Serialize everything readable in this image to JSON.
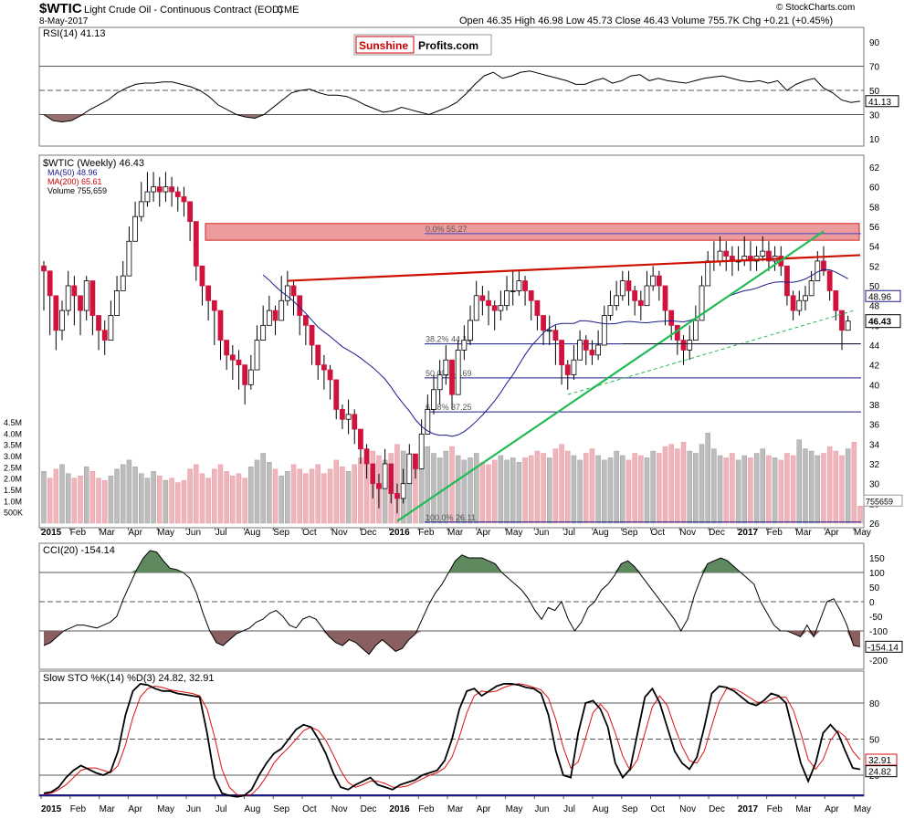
{
  "header": {
    "symbol": "$WTIC",
    "description": "Light Crude Oil - Continuous Contract (EOD)",
    "exchange": "CME",
    "date": "8-May-2017",
    "quote": "Open 46.35  High 46.98  Low 45.73  Close 46.43  Volume 755.7K  Chg +0.21 (+0.45%)",
    "copyright": "© StockCharts.com"
  },
  "logo": {
    "part1": "Sunshine",
    "part2": "Profits.com"
  },
  "colors": {
    "up": "#ffffff",
    "down": "#d0133d",
    "ma50": "#1a1a8c",
    "ma200": "#cc0000",
    "cci_pos": "#5f8a5f",
    "cci_neg": "#8a5f5f",
    "green_line": "#22bb55",
    "resistance": "#cc1100",
    "zone": "#e88a8a",
    "stoch_k": "#000000",
    "stoch_d": "#dd1111"
  },
  "rsi": {
    "label": "RSI(14) 41.13",
    "last_label": "41.13",
    "ticks": [
      "90",
      "70",
      "50",
      "30",
      "10"
    ],
    "values": [
      30,
      25,
      24,
      25,
      29,
      34,
      38,
      42,
      48,
      52,
      55,
      56,
      56,
      57,
      57,
      55,
      53,
      50,
      45,
      38,
      34,
      30,
      28,
      27,
      30,
      36,
      42,
      48,
      50,
      51,
      48,
      46,
      46,
      45,
      42,
      38,
      35,
      32,
      33,
      36,
      34,
      32,
      30,
      33,
      36,
      40,
      47,
      55,
      62,
      65,
      60,
      62,
      65,
      66,
      64,
      62,
      60,
      58,
      55,
      55,
      58,
      60,
      56,
      58,
      62,
      63,
      58,
      60,
      58,
      57,
      56,
      58,
      60,
      61,
      62,
      60,
      58,
      57,
      58,
      56,
      58,
      50,
      55,
      58,
      60,
      52,
      48,
      42,
      40,
      41
    ]
  },
  "price": {
    "label": "$WTIC (Weekly) 46.43",
    "legend": [
      "MA(50) 48.96",
      "MA(200) 65.61",
      "Volume 755,659"
    ],
    "ticks": [
      "62",
      "60",
      "58",
      "56",
      "54",
      "52",
      "50",
      "48",
      "46",
      "44",
      "42",
      "40",
      "38",
      "36",
      "34",
      "32",
      "30",
      "28",
      "26"
    ],
    "vol_ticks": [
      "4.5M",
      "4.0M",
      "3.5M",
      "3.0M",
      "2.5M",
      "2.0M",
      "1.5M",
      "1.0M",
      "500K"
    ],
    "last_label": "46.43",
    "ma50_label": "48.96",
    "vol_label": "755659",
    "fib": [
      {
        "label": "0.0% 55.27",
        "value": 55.27
      },
      {
        "label": "38.2% 44.13",
        "value": 44.13
      },
      {
        "label": "50.0% 40.69",
        "value": 40.69
      },
      {
        "label": "61.8% 37.25",
        "value": 37.25
      },
      {
        "label": "100.0% 26.11",
        "value": 26.11
      }
    ],
    "closes": [
      51.5,
      49.0,
      45.5,
      47.5,
      50.0,
      49.0,
      47.5,
      50.5,
      47.0,
      45.5,
      44.5,
      47.0,
      49.5,
      51.0,
      54.5,
      57.0,
      58.5,
      59.5,
      60.0,
      59.5,
      60.0,
      59.5,
      59.0,
      58.5,
      56.5,
      52.0,
      50.0,
      48.5,
      47.5,
      44.5,
      43.0,
      42.5,
      42.0,
      40.0,
      41.5,
      44.5,
      46.0,
      47.5,
      46.5,
      48.5,
      50.0,
      49.0,
      47.0,
      46.0,
      44.0,
      42.0,
      41.5,
      40.5,
      37.5,
      36.5,
      37.0,
      35.5,
      33.5,
      32.0,
      30.0,
      29.5,
      32.0,
      29.0,
      28.5,
      30.0,
      33.0,
      31.5,
      35.0,
      37.5,
      39.5,
      41.0,
      42.5,
      39.0,
      43.5,
      44.5,
      46.5,
      49.0,
      48.5,
      48.0,
      47.5,
      48.0,
      49.5,
      49.5,
      50.5,
      49.5,
      48.5,
      47.0,
      45.5,
      45.5,
      44.5,
      42.0,
      41.0,
      42.5,
      44.5,
      43.5,
      43.0,
      44.0,
      47.0,
      48.0,
      49.0,
      50.5,
      49.5,
      48.5,
      48.0,
      50.0,
      51.0,
      50.0,
      47.5,
      46.0,
      44.5,
      43.5,
      44.5,
      46.5,
      50.0,
      52.5,
      52.5,
      53.5,
      53.0,
      52.5,
      52.5,
      53.0,
      52.5,
      53.0,
      53.5,
      52.5,
      53.0,
      52.0,
      49.0,
      47.5,
      48.5,
      49.0,
      50.5,
      52.5,
      51.5,
      49.5,
      47.5,
      45.5,
      46.43
    ],
    "highs": [
      52.5,
      51.0,
      49.0,
      48.5,
      51.5,
      51.0,
      49.0,
      51.0,
      49.0,
      47.0,
      46.5,
      48.5,
      51.0,
      52.5,
      56.0,
      58.5,
      60.5,
      61.5,
      61.5,
      61.0,
      61.5,
      61.0,
      60.0,
      60.0,
      58.5,
      56.0,
      52.0,
      50.0,
      48.5,
      47.0,
      44.5,
      44.0,
      43.5,
      42.0,
      43.0,
      46.0,
      48.0,
      49.0,
      48.0,
      51.0,
      51.5,
      50.5,
      48.5,
      47.0,
      45.5,
      43.0,
      43.0,
      42.0,
      39.5,
      38.0,
      38.5,
      37.5,
      35.5,
      34.0,
      32.0,
      31.0,
      33.5,
      31.0,
      30.0,
      31.5,
      34.0,
      33.0,
      36.5,
      39.0,
      41.0,
      42.5,
      44.0,
      42.0,
      44.5,
      46.0,
      48.0,
      50.5,
      50.0,
      49.5,
      48.5,
      49.5,
      51.0,
      51.5,
      51.5,
      51.0,
      49.5,
      48.5,
      46.5,
      47.0,
      46.0,
      43.5,
      42.5,
      44.0,
      45.5,
      45.0,
      44.5,
      45.5,
      48.0,
      49.5,
      50.5,
      51.5,
      51.5,
      50.0,
      49.5,
      51.5,
      52.0,
      51.5,
      49.5,
      47.5,
      46.0,
      45.0,
      46.0,
      48.0,
      51.0,
      53.5,
      54.5,
      55.0,
      54.5,
      54.0,
      54.0,
      55.0,
      54.5,
      54.0,
      55.0,
      54.5,
      54.0,
      54.0,
      51.0,
      49.5,
      49.5,
      50.0,
      51.5,
      53.5,
      54.0,
      51.5,
      49.5,
      47.0,
      46.98
    ],
    "lows": [
      47.5,
      45.0,
      43.5,
      44.5,
      47.0,
      46.0,
      45.0,
      46.5,
      45.0,
      43.5,
      43.0,
      45.0,
      48.0,
      49.5,
      51.0,
      55.0,
      56.5,
      58.0,
      58.5,
      58.0,
      58.5,
      58.0,
      57.5,
      57.0,
      54.5,
      50.5,
      48.0,
      46.5,
      44.0,
      42.5,
      41.5,
      40.5,
      39.5,
      38.0,
      39.5,
      43.0,
      44.5,
      46.0,
      45.0,
      47.0,
      48.0,
      47.0,
      45.0,
      44.0,
      42.0,
      40.5,
      39.5,
      38.5,
      36.5,
      35.5,
      35.0,
      34.0,
      32.0,
      30.5,
      28.5,
      27.5,
      29.5,
      28.0,
      27.0,
      28.0,
      30.5,
      30.5,
      32.0,
      35.0,
      37.0,
      38.0,
      40.0,
      37.5,
      41.0,
      42.5,
      44.0,
      46.5,
      47.0,
      46.0,
      45.5,
      46.5,
      47.5,
      48.0,
      49.0,
      48.0,
      46.5,
      45.5,
      44.0,
      44.0,
      42.0,
      40.0,
      39.5,
      40.5,
      42.5,
      42.0,
      42.0,
      42.5,
      45.0,
      46.5,
      47.5,
      48.5,
      48.0,
      47.0,
      46.5,
      48.5,
      49.5,
      48.5,
      46.0,
      44.5,
      43.0,
      42.0,
      42.5,
      44.5,
      48.0,
      50.5,
      51.5,
      52.0,
      51.5,
      51.0,
      51.5,
      52.0,
      51.5,
      51.5,
      52.5,
      51.5,
      51.5,
      51.0,
      48.0,
      46.5,
      47.0,
      47.5,
      49.0,
      51.0,
      51.0,
      48.5,
      46.5,
      43.5,
      45.73
    ],
    "volume": [
      2.3,
      2.0,
      2.4,
      2.6,
      2.2,
      2.0,
      2.1,
      2.5,
      2.3,
      2.0,
      1.9,
      2.1,
      2.4,
      2.6,
      2.8,
      2.5,
      2.2,
      2.0,
      2.3,
      2.1,
      1.9,
      2.0,
      1.8,
      1.9,
      2.4,
      2.6,
      2.2,
      2.0,
      2.4,
      2.6,
      2.3,
      2.1,
      2.2,
      2.0,
      2.5,
      2.8,
      3.1,
      2.7,
      2.4,
      2.1,
      2.3,
      2.6,
      2.4,
      2.2,
      2.4,
      2.6,
      2.2,
      2.4,
      2.8,
      2.5,
      2.3,
      2.6,
      2.9,
      3.1,
      3.2,
      3.0,
      2.8,
      3.1,
      3.5,
      3.2,
      3.0,
      2.9,
      3.3,
      3.4,
      3.1,
      2.9,
      3.2,
      3.4,
      3.0,
      2.8,
      2.9,
      3.1,
      2.7,
      2.6,
      2.8,
      3.0,
      2.8,
      2.9,
      2.7,
      2.9,
      3.0,
      3.2,
      3.1,
      2.9,
      3.3,
      3.5,
      3.2,
      3.0,
      2.8,
      3.1,
      3.3,
      3.0,
      2.8,
      2.9,
      3.2,
      3.0,
      2.8,
      3.1,
      3.0,
      2.9,
      3.2,
      3.1,
      3.4,
      3.5,
      3.3,
      3.6,
      3.2,
      3.1,
      3.5,
      4.0,
      3.3,
      3.0,
      2.9,
      3.1,
      2.8,
      3.0,
      2.9,
      3.1,
      3.3,
      3.0,
      2.9,
      2.8,
      3.1,
      3.0,
      3.7,
      3.3,
      3.2,
      3.0,
      3.1,
      3.4,
      3.2,
      3.0,
      3.3,
      3.6,
      0.76
    ]
  },
  "cci": {
    "label": "CCI(20) -154.14",
    "last_label": "-154.14",
    "ticks": [
      "150",
      "100",
      "50",
      "0",
      "-50",
      "-100",
      "-150",
      "-200"
    ],
    "values": [
      -150,
      -140,
      -120,
      -100,
      -90,
      -80,
      -80,
      -85,
      -90,
      -80,
      -70,
      -50,
      10,
      60,
      110,
      150,
      175,
      170,
      140,
      115,
      110,
      100,
      80,
      30,
      -40,
      -100,
      -140,
      -150,
      -130,
      -110,
      -100,
      -90,
      -70,
      -60,
      -40,
      -30,
      -50,
      -80,
      -90,
      -60,
      -50,
      -60,
      -90,
      -120,
      -140,
      -150,
      -130,
      -140,
      -160,
      -180,
      -150,
      -130,
      -150,
      -170,
      -160,
      -130,
      -110,
      -60,
      -10,
      30,
      60,
      100,
      140,
      160,
      150,
      150,
      150,
      140,
      130,
      100,
      80,
      60,
      40,
      10,
      -30,
      -60,
      -20,
      -30,
      0,
      -60,
      -100,
      -70,
      -20,
      0,
      40,
      60,
      90,
      130,
      140,
      120,
      90,
      60,
      30,
      0,
      -30,
      -60,
      -100,
      -60,
      20,
      80,
      130,
      140,
      150,
      140,
      120,
      100,
      80,
      60,
      0,
      -40,
      -80,
      -100,
      -100,
      -110,
      -120,
      -80,
      -120,
      -60,
      0,
      10,
      -30,
      -80,
      -150,
      -154
    ]
  },
  "stoch": {
    "label": "Slow STO %K(14) %D(3) 24.82, 32.91",
    "k_label": "24.82",
    "d_label": "32.91",
    "ticks": [
      "80",
      "50",
      "20"
    ],
    "k": [
      5,
      6,
      10,
      18,
      24,
      28,
      25,
      22,
      20,
      23,
      40,
      70,
      90,
      96,
      95,
      92,
      90,
      90,
      88,
      87,
      86,
      85,
      55,
      18,
      5,
      3,
      2,
      3,
      8,
      20,
      30,
      38,
      42,
      50,
      58,
      62,
      60,
      50,
      38,
      22,
      10,
      8,
      12,
      15,
      18,
      12,
      10,
      8,
      12,
      14,
      16,
      20,
      22,
      24,
      32,
      50,
      75,
      90,
      92,
      86,
      90,
      94,
      96,
      96,
      95,
      93,
      92,
      88,
      70,
      40,
      20,
      18,
      55,
      80,
      82,
      75,
      60,
      30,
      18,
      25,
      55,
      85,
      92,
      80,
      60,
      40,
      30,
      25,
      35,
      60,
      88,
      94,
      93,
      90,
      85,
      80,
      78,
      82,
      88,
      86,
      80,
      55,
      30,
      15,
      30,
      55,
      62,
      55,
      40,
      26,
      24.82
    ],
    "d": [
      4,
      5,
      8,
      12,
      18,
      24,
      26,
      26,
      24,
      22,
      28,
      45,
      68,
      85,
      92,
      94,
      93,
      91,
      90,
      89,
      88,
      86,
      75,
      52,
      25,
      10,
      4,
      3,
      4,
      10,
      19,
      30,
      37,
      43,
      50,
      57,
      60,
      57,
      49,
      37,
      24,
      14,
      10,
      12,
      15,
      15,
      13,
      10,
      10,
      11,
      14,
      17,
      20,
      22,
      26,
      35,
      52,
      72,
      86,
      90,
      89,
      90,
      93,
      95,
      96,
      95,
      93,
      91,
      84,
      66,
      43,
      26,
      31,
      51,
      72,
      79,
      72,
      55,
      36,
      24,
      33,
      55,
      77,
      86,
      78,
      60,
      44,
      32,
      30,
      40,
      61,
      81,
      92,
      92,
      89,
      85,
      81,
      80,
      83,
      85,
      85,
      74,
      55,
      33,
      25,
      33,
      49,
      57,
      52,
      40,
      32.91
    ]
  },
  "xaxis": [
    "2015",
    "Feb",
    "Mar",
    "Apr",
    "May",
    "Jun",
    "Jul",
    "Aug",
    "Sep",
    "Oct",
    "Nov",
    "Dec",
    "2016",
    "Feb",
    "Mar",
    "Apr",
    "May",
    "Jun",
    "Jul",
    "Aug",
    "Sep",
    "Oct",
    "Nov",
    "Dec",
    "2017",
    "Feb",
    "Mar",
    "Apr",
    "May"
  ]
}
